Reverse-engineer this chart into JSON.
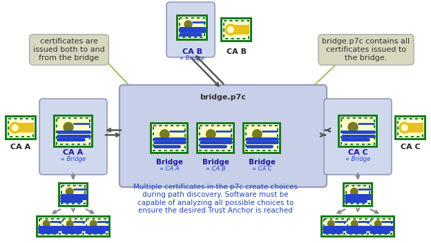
{
  "bg_color": "#ffffff",
  "bridge_box_color": "#c8cfe8",
  "bridge_box_edge": "#9099bb",
  "ca_box_color": "#d0d8ee",
  "ca_box_edge": "#9099bb",
  "cert_outer": "#1a7a1a",
  "cert_inner_bg": "#ffffc8",
  "cert_dot": "#7a7a20",
  "cert_line1": "#2244cc",
  "cert_line2": "#2244cc",
  "key_color": "#e8c020",
  "key_bg": "#ffffc8",
  "arrow_dark": "#555555",
  "arrow_gray": "#888888",
  "note_bg": "#d8d8c0",
  "note_edge": "#aaaaaa",
  "note_text": "#333333",
  "blue_text": "#2244bb",
  "green_line": "#88bb44",
  "title_text": "bridge.p7c",
  "left_note": "certificates are\nissued both to and\nfrom the bridge",
  "right_note_line1": "bridge.p7c contains ",
  "right_note_bold": "all",
  "right_note_line2": "certificates issued ",
  "right_note_underline": "to",
  "right_note_line3": "the bridge.",
  "bottom_note": "Multiple certificates in the p7c create choices\nduring path discovery. Software must be\ncapable of analyzing all possible choices to\nensure the desired Trust Anchor is reached",
  "figsize": [
    6.24,
    3.52
  ],
  "dpi": 100
}
